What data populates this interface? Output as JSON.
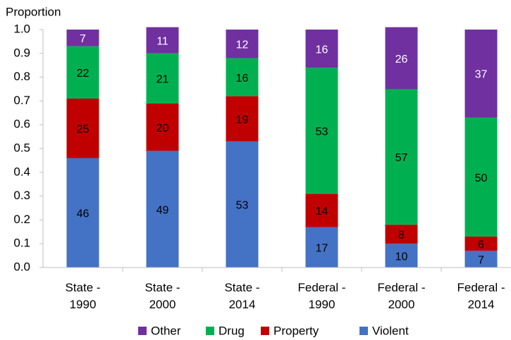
{
  "chart_data": {
    "type": "stacked_bar",
    "y_label": "Proportion",
    "categories": [
      "State - 1990",
      "State - 2000",
      "State - 2014",
      "Federal - 1990",
      "Federal - 2000",
      "Federal - 2014"
    ],
    "series": [
      {
        "name": "Other",
        "color": "#7030a0",
        "values": [
          0.07,
          0.11,
          0.12,
          0.16,
          0.26,
          0.37
        ],
        "value_labels": [
          "7",
          "11",
          "12",
          "16",
          "26",
          "37"
        ]
      },
      {
        "name": "Drug",
        "color": "#00b050",
        "values": [
          0.22,
          0.21,
          0.16,
          0.53,
          0.57,
          0.5
        ],
        "value_labels": [
          "22",
          "21",
          "16",
          "53",
          "57",
          "50"
        ]
      },
      {
        "name": "Property",
        "color": "#c00000",
        "values": [
          0.25,
          0.2,
          0.19,
          0.14,
          0.08,
          0.06
        ],
        "value_labels": [
          "25",
          "20",
          "19",
          "14",
          "8",
          "6"
        ]
      },
      {
        "name": "Violent",
        "color": "#4472c4",
        "values": [
          0.46,
          0.49,
          0.53,
          0.17,
          0.1,
          0.07
        ],
        "value_labels": [
          "46",
          "49",
          "53",
          "17",
          "10",
          "7"
        ]
      }
    ],
    "ylim": [
      0,
      1
    ],
    "yticks": [
      {
        "value": 0,
        "label": "0.0"
      },
      {
        "value": 0.1,
        "label": "0.1"
      },
      {
        "value": 0.2,
        "label": "0.2"
      },
      {
        "value": 0.3,
        "label": "0.3"
      },
      {
        "value": 0.4,
        "label": "0.4"
      },
      {
        "value": 0.5,
        "label": "0.5"
      },
      {
        "value": 0.6,
        "label": "0.6"
      },
      {
        "value": 0.7,
        "label": "0.7"
      },
      {
        "value": 0.8,
        "label": "0.8"
      },
      {
        "value": 0.9,
        "label": "0.9"
      },
      {
        "value": 1,
        "label": "1.0"
      }
    ],
    "grid": false,
    "legend": "bottom"
  }
}
